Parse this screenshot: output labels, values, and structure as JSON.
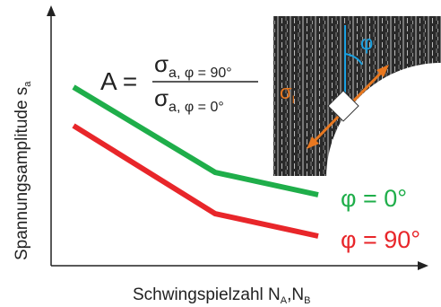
{
  "y_label": {
    "text": "Spannungsamplitude s",
    "sub": "a"
  },
  "x_label": {
    "text": "Schwingspielzahl N",
    "sub_1": "A",
    "middle": ",N",
    "sub_2": "B"
  },
  "formula": {
    "lhs": "A =",
    "numerator": "σ",
    "numerator_sub": "a, φ = 90°",
    "denominator": "σ",
    "denominator_sub": "a, φ = 0°"
  },
  "legend": {
    "green": "φ = 0°",
    "red": "φ = 90°"
  },
  "image": {
    "angle_label": "φ",
    "stress_label": "σ",
    "stress_sub": "I"
  }
}
